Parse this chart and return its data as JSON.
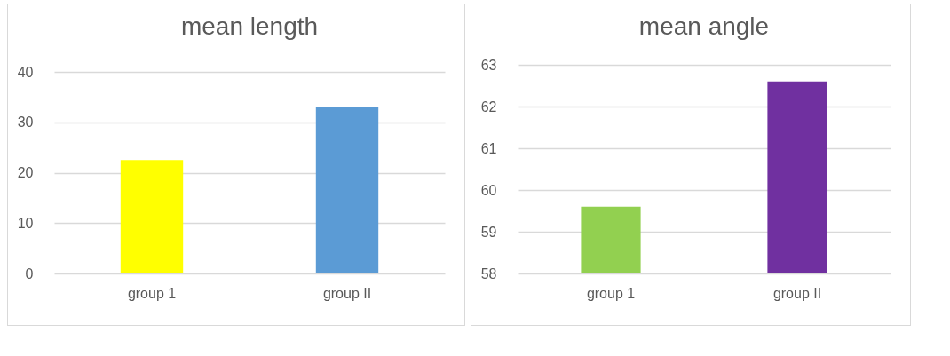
{
  "chart_data": [
    {
      "type": "bar",
      "title": "mean length",
      "categories": [
        "group 1",
        "group II"
      ],
      "values": [
        22.5,
        33
      ],
      "colors": [
        "#ffff00",
        "#5b9bd5"
      ],
      "ylim": [
        0,
        40
      ],
      "yticks": [
        0,
        10,
        20,
        30,
        40
      ],
      "grid": "y"
    },
    {
      "type": "bar",
      "title": "mean angle",
      "categories": [
        "group 1",
        "group II"
      ],
      "values": [
        59.6,
        62.6
      ],
      "colors": [
        "#92d050",
        "#7030a0"
      ],
      "ylim": [
        58,
        63
      ],
      "yticks": [
        58,
        59,
        60,
        61,
        62,
        63
      ],
      "grid": "y"
    }
  ]
}
